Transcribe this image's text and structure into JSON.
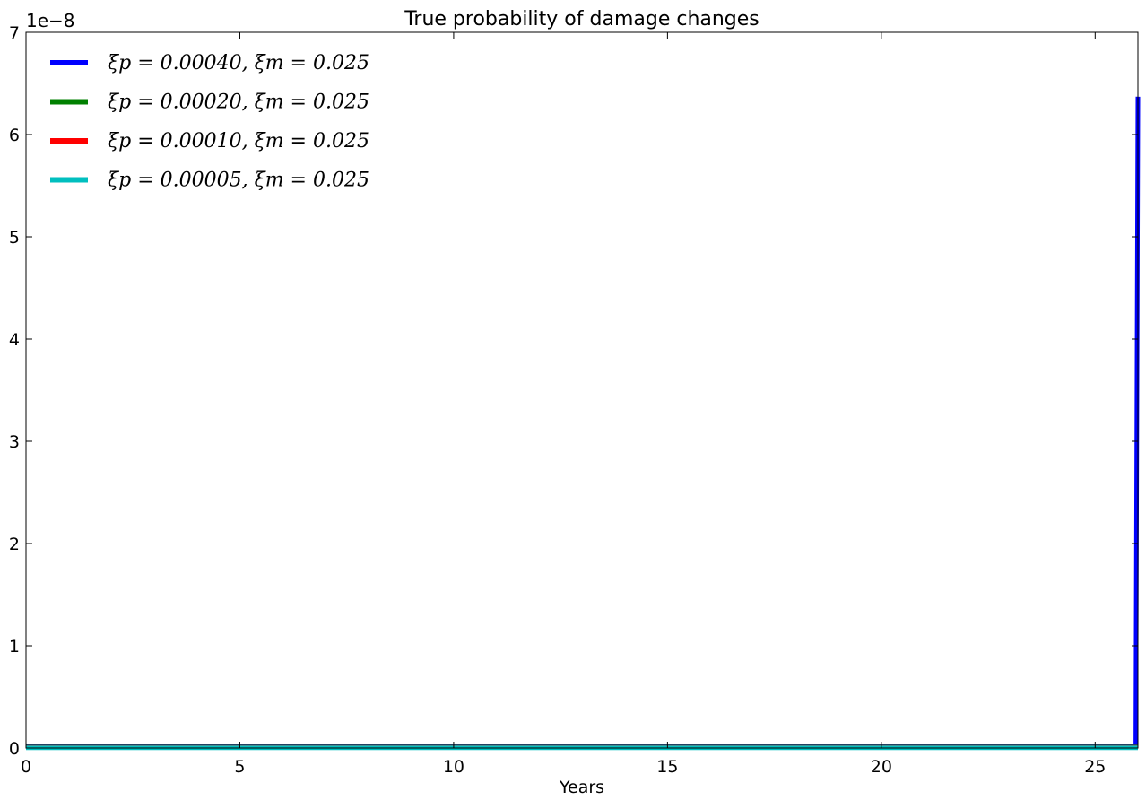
{
  "chart_data": {
    "type": "line",
    "title": "True probability of damage changes",
    "xlabel": "Years",
    "ylabel": "",
    "offset_text": "1e−8",
    "xlim": [
      0,
      26
    ],
    "ylim": [
      0,
      7
    ],
    "y_scale_factor": 1e-08,
    "xticks": [
      "0",
      "5",
      "10",
      "15",
      "20",
      "25"
    ],
    "xtick_values": [
      0,
      5,
      10,
      15,
      20,
      25
    ],
    "yticks": [
      "0",
      "1",
      "2",
      "3",
      "4",
      "5",
      "6",
      "7"
    ],
    "ytick_values": [
      0,
      1,
      2,
      3,
      4,
      5,
      6,
      7
    ],
    "grid": false,
    "legend_position": "upper-left",
    "series": [
      {
        "name": "ξp = 0.00040, ξm = 0.025",
        "color": "#0000ff",
        "x": [
          0,
          5,
          10,
          15,
          20,
          25,
          25.95,
          26
        ],
        "y": [
          0.02,
          0.02,
          0.02,
          0.02,
          0.02,
          0.02,
          0.02,
          6.37
        ]
      },
      {
        "name": "ξp = 0.00020, ξm = 0.025",
        "color": "#008000",
        "x": [
          0,
          5,
          10,
          15,
          20,
          25,
          26
        ],
        "y": [
          0.01,
          0.01,
          0.01,
          0.01,
          0.01,
          0.01,
          0.01
        ]
      },
      {
        "name": "ξp = 0.00010, ξm = 0.025",
        "color": "#ff0000",
        "x": [
          0,
          5,
          10,
          15,
          20,
          25,
          26
        ],
        "y": [
          0.005,
          0.005,
          0.005,
          0.005,
          0.005,
          0.005,
          0.005
        ]
      },
      {
        "name": "ξp = 0.00005, ξm = 0.025",
        "color": "#00bfbf",
        "x": [
          0,
          5,
          10,
          15,
          20,
          25,
          26
        ],
        "y": [
          0.002,
          0.002,
          0.002,
          0.002,
          0.002,
          0.002,
          0.002
        ]
      }
    ]
  }
}
